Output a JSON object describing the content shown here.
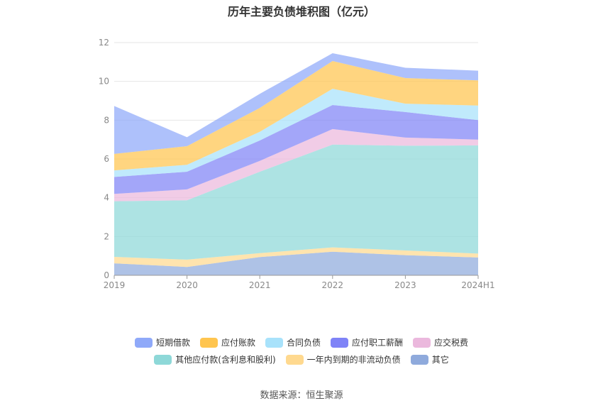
{
  "chart_data": {
    "type": "area",
    "stacked": true,
    "title": "历年主要负债堆积图（亿元）",
    "categories": [
      "2019",
      "2020",
      "2021",
      "2022",
      "2023",
      "2024H1"
    ],
    "ylim": [
      0,
      12
    ],
    "yticks": [
      0,
      2,
      4,
      6,
      8,
      10,
      12
    ],
    "grid": true,
    "legend_position": "bottom",
    "series": [
      {
        "name": "其它",
        "color": "#8faadc",
        "values": [
          0.62,
          0.43,
          0.94,
          1.22,
          1.04,
          0.92
        ]
      },
      {
        "name": "一年内到期的非流动负债",
        "color": "#ffd98f",
        "values": [
          0.33,
          0.38,
          0.2,
          0.22,
          0.24,
          0.2
        ]
      },
      {
        "name": "其他应付款(含利息和股利)",
        "color": "#8ed8d8",
        "values": [
          2.87,
          3.06,
          4.2,
          5.3,
          5.4,
          5.58
        ]
      },
      {
        "name": "应交税费",
        "color": "#ebb8dd",
        "values": [
          0.38,
          0.56,
          0.56,
          0.8,
          0.42,
          0.3
        ]
      },
      {
        "name": "应付职工薪酬",
        "color": "#7f83f7",
        "values": [
          0.87,
          0.91,
          1.05,
          1.24,
          1.32,
          1.0
        ]
      },
      {
        "name": "合同负债",
        "color": "#a8e2fb",
        "values": [
          0.34,
          0.36,
          0.45,
          0.84,
          0.43,
          0.75
        ]
      },
      {
        "name": "应付账款",
        "color": "#ffc54f",
        "values": [
          0.85,
          0.96,
          1.23,
          1.43,
          1.32,
          1.3
        ]
      },
      {
        "name": "短期借款",
        "color": "#8fa9f9",
        "values": [
          2.47,
          0.46,
          0.73,
          0.4,
          0.53,
          0.5
        ]
      }
    ],
    "legend_rows": [
      [
        "短期借款",
        "应付账款",
        "合同负债",
        "应付职工薪酬",
        "应交税费"
      ],
      [
        "其他应付款(含利息和股利)",
        "一年内到期的非流动负债",
        "其它"
      ]
    ]
  },
  "source": "数据来源：恒生聚源"
}
